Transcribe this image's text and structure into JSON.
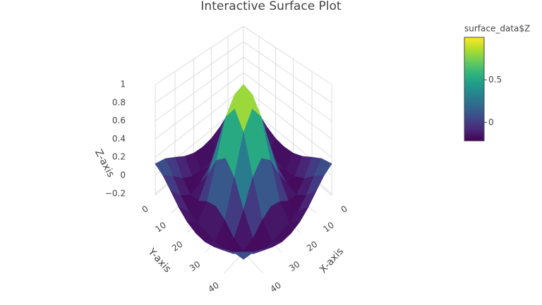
{
  "chart_data": {
    "type": "surface",
    "title": "Interactive Surface Plot",
    "x": [
      0,
      5,
      10,
      15,
      20,
      25,
      30,
      35,
      40,
      45,
      50
    ],
    "y": [
      0,
      5,
      10,
      15,
      20,
      25,
      30,
      35,
      40,
      45,
      50
    ],
    "z": [
      [
        0.128,
        0.094,
        0.02,
        -0.06,
        -0.112,
        -0.128,
        -0.112,
        -0.06,
        0.02,
        0.094,
        0.128
      ],
      [
        0.094,
        -0.01,
        -0.128,
        -0.199,
        -0.217,
        -0.216,
        -0.217,
        -0.199,
        -0.128,
        -0.01,
        0.094
      ],
      [
        0.02,
        -0.128,
        -0.214,
        -0.185,
        -0.095,
        -0.048,
        -0.095,
        -0.185,
        -0.214,
        -0.128,
        0.02
      ],
      [
        -0.06,
        -0.199,
        -0.185,
        0.01,
        0.256,
        0.367,
        0.256,
        0.01,
        -0.185,
        -0.199,
        -0.06
      ],
      [
        -0.112,
        -0.217,
        -0.095,
        0.256,
        0.643,
        0.81,
        0.643,
        0.256,
        -0.095,
        -0.217,
        -0.112
      ],
      [
        -0.128,
        -0.216,
        -0.048,
        0.367,
        0.81,
        1,
        0.81,
        0.367,
        -0.048,
        -0.216,
        -0.128
      ],
      [
        -0.112,
        -0.217,
        -0.095,
        0.256,
        0.643,
        0.81,
        0.643,
        0.256,
        -0.095,
        -0.217,
        -0.112
      ],
      [
        -0.06,
        -0.199,
        -0.185,
        0.01,
        0.256,
        0.367,
        0.256,
        0.01,
        -0.185,
        -0.199,
        -0.06
      ],
      [
        0.02,
        -0.128,
        -0.214,
        -0.185,
        -0.095,
        -0.048,
        -0.095,
        -0.185,
        -0.214,
        -0.128,
        0.02
      ],
      [
        0.094,
        -0.01,
        -0.128,
        -0.199,
        -0.217,
        -0.216,
        -0.217,
        -0.199,
        -0.128,
        -0.01,
        0.094
      ],
      [
        0.128,
        0.094,
        0.02,
        -0.06,
        -0.112,
        -0.128,
        -0.112,
        -0.06,
        0.02,
        0.094,
        0.128
      ]
    ],
    "xlabel": "X-axis",
    "ylabel": "Y-axis",
    "zlabel": "Z-axis",
    "xlim": [
      0,
      50
    ],
    "ylim": [
      0,
      50
    ],
    "zlim": [
      -0.22,
      1
    ],
    "xticks": [
      0,
      10,
      20,
      30,
      40
    ],
    "yticks": [
      0,
      10,
      20,
      30,
      40
    ],
    "zticks": [
      {
        "value": -0.2,
        "label": "−0.2"
      },
      0,
      0.2,
      0.4,
      0.6,
      0.8,
      1
    ],
    "grid": true,
    "colorscale": [
      "#440154",
      "#482878",
      "#3e4989",
      "#31688e",
      "#26828e",
      "#1f9e89",
      "#35b779",
      "#6ece58",
      "#b5de2b",
      "#fde725"
    ],
    "colorbar": {
      "title": "surface_data$Z",
      "range": [
        -0.217,
        1
      ],
      "ticks": [
        0,
        0.5
      ]
    }
  }
}
